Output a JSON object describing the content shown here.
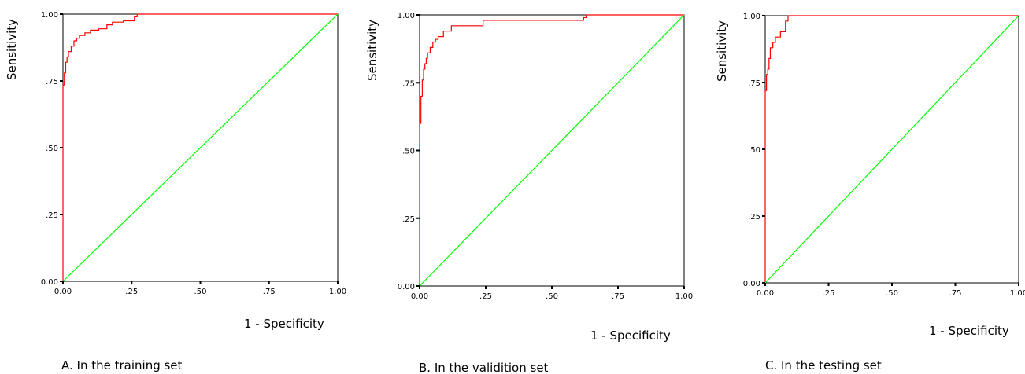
{
  "chart_data": [
    {
      "type": "line",
      "caption": "A. In the training set",
      "xlabel": "1 - Specificity",
      "ylabel": "Sensitivity",
      "xlim": [
        0,
        1
      ],
      "ylim": [
        0,
        1
      ],
      "x_ticks": [
        0,
        0.25,
        0.5,
        0.75,
        1
      ],
      "y_ticks": [
        0,
        0.25,
        0.5,
        0.75,
        1
      ],
      "x_tick_labels": [
        "0.00",
        ".25",
        ".50",
        ".75",
        "1.00"
      ],
      "y_tick_labels": [
        "0.00",
        ".25",
        ".50",
        ".75",
        "1.00"
      ],
      "grid": false,
      "series": [
        {
          "color": "#ff0000",
          "step": true,
          "x": [
            0,
            0,
            0.005,
            0.01,
            0.015,
            0.02,
            0.03,
            0.04,
            0.05,
            0.06,
            0.08,
            0.1,
            0.13,
            0.16,
            0.18,
            0.22,
            0.26,
            0.27,
            0.3,
            1
          ],
          "y": [
            0,
            0.735,
            0.78,
            0.82,
            0.84,
            0.86,
            0.88,
            0.9,
            0.91,
            0.92,
            0.93,
            0.94,
            0.945,
            0.96,
            0.97,
            0.975,
            0.99,
            1,
            1,
            1
          ]
        },
        {
          "color": "#00ff00",
          "step": false,
          "x": [
            0,
            1
          ],
          "y": [
            0,
            1
          ]
        }
      ]
    },
    {
      "type": "line",
      "caption": "B. In the validition set",
      "xlabel": "1 - Specificity",
      "ylabel": "Sensitivity",
      "xlim": [
        0,
        1
      ],
      "ylim": [
        0,
        1
      ],
      "x_ticks": [
        0,
        0.25,
        0.5,
        0.75,
        1
      ],
      "y_ticks": [
        0,
        0.25,
        0.5,
        0.75,
        1
      ],
      "x_tick_labels": [
        "0.00",
        ".25",
        ".50",
        ".75",
        "1.00"
      ],
      "y_tick_labels": [
        "0.00",
        ".25",
        ".50",
        ".75",
        "1.00"
      ],
      "grid": false,
      "series": [
        {
          "color": "#ff0000",
          "step": true,
          "x": [
            0,
            0,
            0.005,
            0.01,
            0.015,
            0.02,
            0.025,
            0.03,
            0.04,
            0.05,
            0.06,
            0.07,
            0.09,
            0.12,
            0.24,
            0.62,
            0.63,
            1
          ],
          "y": [
            0,
            0.6,
            0.7,
            0.76,
            0.8,
            0.82,
            0.84,
            0.86,
            0.88,
            0.9,
            0.91,
            0.92,
            0.94,
            0.96,
            0.98,
            0.99,
            1,
            1
          ]
        },
        {
          "color": "#00ff00",
          "step": false,
          "x": [
            0,
            1
          ],
          "y": [
            0,
            1
          ]
        }
      ]
    },
    {
      "type": "line",
      "caption": "C. In the testing set",
      "xlabel": "1 - Specificity",
      "ylabel": "Sensitivity",
      "xlim": [
        0,
        1
      ],
      "ylim": [
        0,
        1
      ],
      "x_ticks": [
        0,
        0.25,
        0.5,
        0.75,
        1
      ],
      "y_ticks": [
        0,
        0.25,
        0.5,
        0.75,
        1
      ],
      "x_tick_labels": [
        "0.00",
        ".25",
        ".50",
        ".75",
        "1.00"
      ],
      "y_tick_labels": [
        "0.00",
        ".25",
        ".50",
        ".75",
        "1.00"
      ],
      "grid": false,
      "series": [
        {
          "color": "#ff0000",
          "step": true,
          "x": [
            0,
            0,
            0.005,
            0.01,
            0.015,
            0.02,
            0.03,
            0.04,
            0.06,
            0.08,
            0.09,
            1
          ],
          "y": [
            0,
            0.72,
            0.78,
            0.8,
            0.84,
            0.88,
            0.9,
            0.92,
            0.94,
            0.98,
            1,
            1
          ]
        },
        {
          "color": "#00ff00",
          "step": false,
          "x": [
            0,
            1
          ],
          "y": [
            0,
            1
          ]
        }
      ]
    }
  ]
}
